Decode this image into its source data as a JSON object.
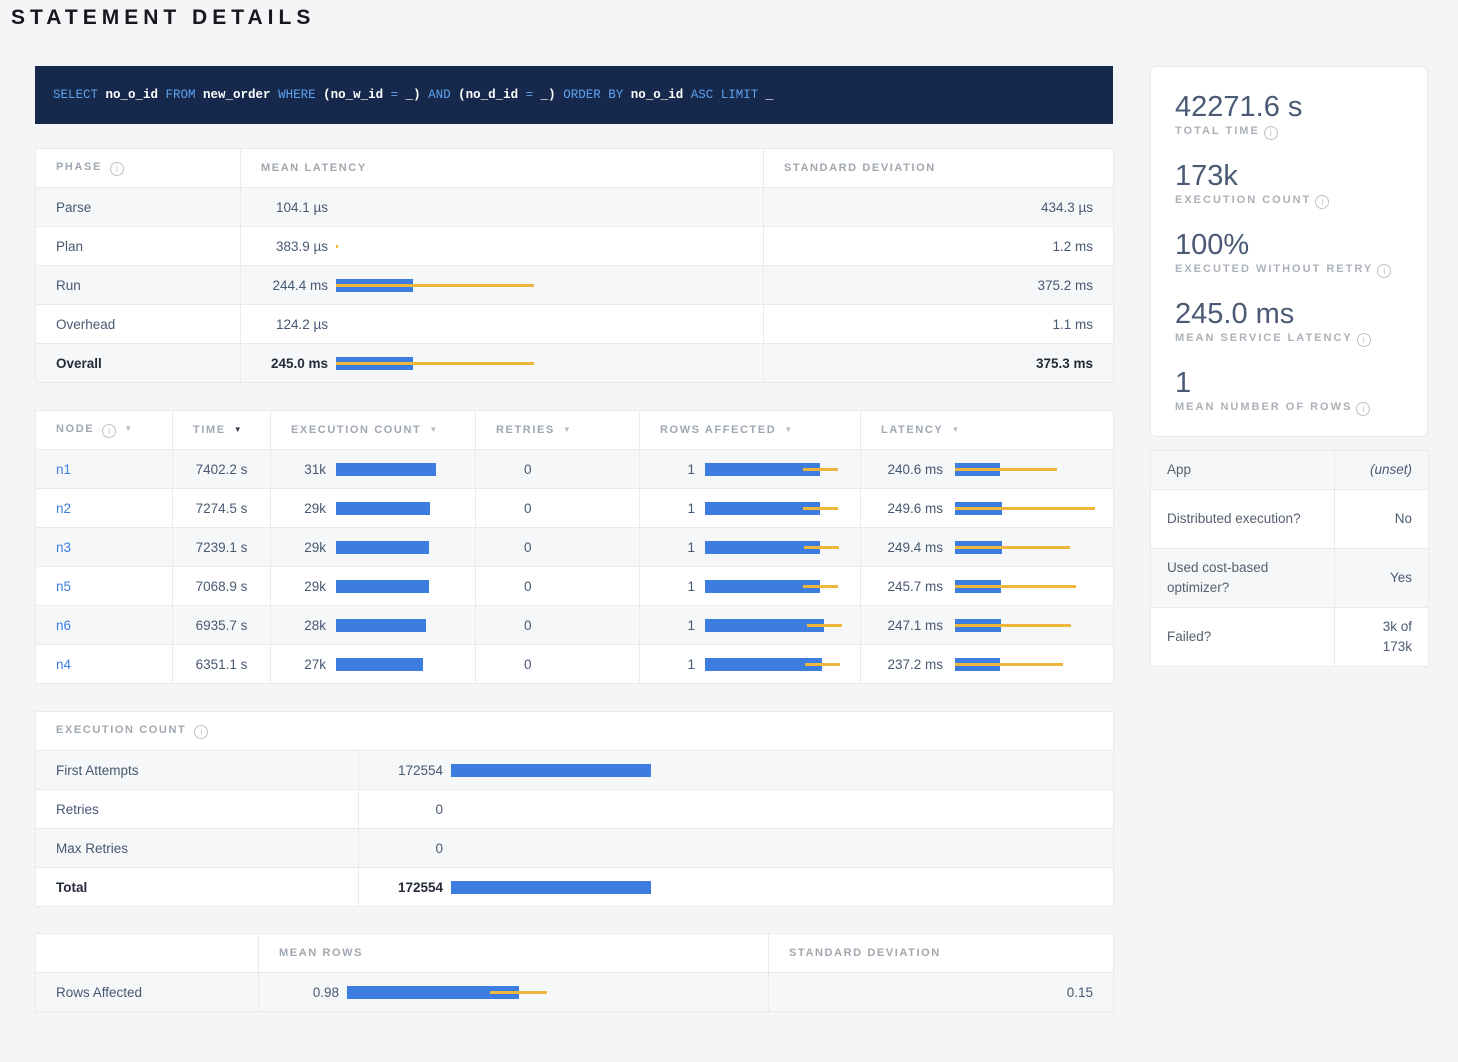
{
  "title": "STATEMENT DETAILS",
  "icons": {
    "info": "i",
    "sort_desc": "▼"
  },
  "colors": {
    "bar_blue": "#3e7de0",
    "bar_yellow": "#efb63d",
    "link": "#3e7de0",
    "sql_bg": "#16294c",
    "sql_keyword": "#5ea2ef",
    "sql_identifier": "#ffffff"
  },
  "sql": {
    "full_text": "SELECT no_o_id FROM new_order WHERE (no_w_id = _) AND (no_d_id = _) ORDER BY no_o_id ASC LIMIT _",
    "tokens": [
      {
        "type": "keyword",
        "text": "SELECT "
      },
      {
        "type": "ident",
        "text": "no_o_id "
      },
      {
        "type": "keyword",
        "text": "FROM "
      },
      {
        "type": "ident",
        "text": "new_order "
      },
      {
        "type": "keyword",
        "text": "WHERE "
      },
      {
        "type": "ident",
        "text": "(no_w_id "
      },
      {
        "type": "keyword",
        "text": "= "
      },
      {
        "type": "ident",
        "text": "_) "
      },
      {
        "type": "keyword",
        "text": "AND "
      },
      {
        "type": "ident",
        "text": "(no_d_id "
      },
      {
        "type": "keyword",
        "text": "= "
      },
      {
        "type": "ident",
        "text": "_) "
      },
      {
        "type": "keyword",
        "text": "ORDER BY "
      },
      {
        "type": "ident",
        "text": "no_o_id "
      },
      {
        "type": "keyword",
        "text": "ASC LIMIT "
      },
      {
        "type": "ident",
        "text": "_"
      }
    ]
  },
  "phase_table": {
    "headers": [
      "PHASE",
      "MEAN LATENCY",
      "STANDARD DEVIATION"
    ],
    "rows": [
      {
        "phase": "Parse",
        "mean_latency": "104.1 µs",
        "std_dev": "434.3 µs",
        "bar": null,
        "bold": false
      },
      {
        "phase": "Plan",
        "mean_latency": "383.9 µs",
        "std_dev": "1.2 ms",
        "bar": {
          "blue": 0,
          "yellow": [
            0,
            2
          ]
        },
        "bold": false
      },
      {
        "phase": "Run",
        "mean_latency": "244.4 ms",
        "std_dev": "375.2 ms",
        "bar": {
          "blue": 77,
          "yellow": [
            0,
            198
          ]
        },
        "bold": false
      },
      {
        "phase": "Overhead",
        "mean_latency": "124.2 µs",
        "std_dev": "1.1 ms",
        "bar": null,
        "bold": false
      },
      {
        "phase": "Overall",
        "mean_latency": "245.0 ms",
        "std_dev": "375.3 ms",
        "bar": {
          "blue": 77,
          "yellow": [
            0,
            198
          ]
        },
        "bold": true
      }
    ]
  },
  "node_table": {
    "headers": [
      "NODE",
      "TIME",
      "EXECUTION COUNT",
      "RETRIES",
      "ROWS AFFECTED",
      "LATENCY"
    ],
    "sorted_by": "TIME",
    "rows": [
      {
        "node": "n1",
        "time": "7402.2 s",
        "execution_count": "31k",
        "exec_bar": {
          "blue": 100
        },
        "retries": "0",
        "rows_affected": "1",
        "rows_bar": {
          "blue": 115,
          "yellow": [
            98,
            133
          ]
        },
        "latency": "240.6 ms",
        "latency_bar": {
          "blue": 45,
          "yellow": [
            0,
            102
          ]
        }
      },
      {
        "node": "n2",
        "time": "7274.5 s",
        "execution_count": "29k",
        "exec_bar": {
          "blue": 94
        },
        "retries": "0",
        "rows_affected": "1",
        "rows_bar": {
          "blue": 115,
          "yellow": [
            98,
            133
          ]
        },
        "latency": "249.6 ms",
        "latency_bar": {
          "blue": 47,
          "yellow": [
            0,
            140
          ]
        }
      },
      {
        "node": "n3",
        "time": "7239.1 s",
        "execution_count": "29k",
        "exec_bar": {
          "blue": 93
        },
        "retries": "0",
        "rows_affected": "1",
        "rows_bar": {
          "blue": 115,
          "yellow": [
            99,
            134
          ]
        },
        "latency": "249.4 ms",
        "latency_bar": {
          "blue": 47,
          "yellow": [
            0,
            115
          ]
        }
      },
      {
        "node": "n5",
        "time": "7068.9 s",
        "execution_count": "29k",
        "exec_bar": {
          "blue": 93
        },
        "retries": "0",
        "rows_affected": "1",
        "rows_bar": {
          "blue": 115,
          "yellow": [
            98,
            133
          ]
        },
        "latency": "245.7 ms",
        "latency_bar": {
          "blue": 46,
          "yellow": [
            0,
            121
          ]
        }
      },
      {
        "node": "n6",
        "time": "6935.7 s",
        "execution_count": "28k",
        "exec_bar": {
          "blue": 90
        },
        "retries": "0",
        "rows_affected": "1",
        "rows_bar": {
          "blue": 119,
          "yellow": [
            102,
            137
          ]
        },
        "latency": "247.1 ms",
        "latency_bar": {
          "blue": 46,
          "yellow": [
            0,
            116
          ]
        }
      },
      {
        "node": "n4",
        "time": "6351.1 s",
        "execution_count": "27k",
        "exec_bar": {
          "blue": 87
        },
        "retries": "0",
        "rows_affected": "1",
        "rows_bar": {
          "blue": 117,
          "yellow": [
            100,
            135
          ]
        },
        "latency": "237.2 ms",
        "latency_bar": {
          "blue": 45,
          "yellow": [
            0,
            108
          ]
        }
      }
    ]
  },
  "execution_count_table": {
    "title": "EXECUTION COUNT",
    "rows": [
      {
        "label": "First Attempts",
        "value": "172554",
        "bar": {
          "blue": 200
        },
        "bold": false
      },
      {
        "label": "Retries",
        "value": "0",
        "bar": null,
        "bold": false
      },
      {
        "label": "Max Retries",
        "value": "0",
        "bar": null,
        "bold": false
      },
      {
        "label": "Total",
        "value": "172554",
        "bar": {
          "blue": 200
        },
        "bold": true
      }
    ]
  },
  "rows_affected_table": {
    "headers": [
      "",
      "MEAN ROWS",
      "STANDARD DEVIATION"
    ],
    "rows": [
      {
        "label": "Rows Affected",
        "mean": "0.98",
        "bar": {
          "blue": 172,
          "yellow": [
            143,
            200
          ]
        },
        "std_dev": "0.15"
      }
    ]
  },
  "sidebar": {
    "stats": [
      {
        "value": "42271.6 s",
        "label": "TOTAL TIME"
      },
      {
        "value": "173k",
        "label": "EXECUTION COUNT"
      },
      {
        "value": "100%",
        "label": "EXECUTED WITHOUT RETRY"
      },
      {
        "value": "245.0 ms",
        "label": "MEAN SERVICE LATENCY"
      },
      {
        "value": "1",
        "label": "MEAN NUMBER OF ROWS"
      }
    ],
    "details": [
      {
        "label": "App",
        "value": "(unset)",
        "muted": true,
        "tall": false
      },
      {
        "label": "Distributed execution?",
        "value": "No",
        "muted": false,
        "tall": true
      },
      {
        "label": "Used cost-based optimizer?",
        "value": "Yes",
        "muted": false,
        "tall": true
      },
      {
        "label": "Failed?",
        "value": "3k of 173k",
        "muted": false,
        "tall": true
      }
    ]
  }
}
